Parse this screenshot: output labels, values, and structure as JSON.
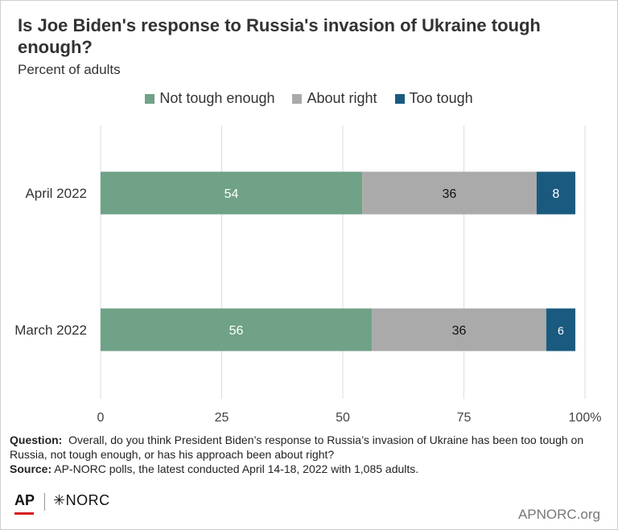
{
  "chart_data": {
    "type": "bar",
    "orientation": "horizontal",
    "stacked": true,
    "title": "Is Joe Biden's response to Russia's invasion of Ukraine tough enough?",
    "subtitle": "Percent of adults",
    "categories": [
      "April 2022",
      "March 2022"
    ],
    "series": [
      {
        "name": "Not tough enough",
        "values": [
          54,
          56
        ],
        "color": "#6fa287"
      },
      {
        "name": "About right",
        "values": [
          36,
          36
        ],
        "color": "#aaaaaa"
      },
      {
        "name": "Too tough",
        "values": [
          8,
          6
        ],
        "color": "#1a5a7f"
      }
    ],
    "xlim": [
      0,
      100
    ],
    "xticks": [
      "0",
      "25",
      "50",
      "75",
      "100%"
    ],
    "grid": true,
    "legend_position": "top"
  },
  "footer": {
    "question_label": "Question:",
    "question_text": "Overall, do you think President Biden’s response to Russia’s invasion of Ukraine has been too tough on Russia, not tough enough, or has his approach been about right?",
    "source_label": "Source:",
    "source_text": "AP-NORC polls, the latest conducted April 14-18, 2022 with 1,085 adults."
  },
  "branding": {
    "ap": "AP",
    "norc": "NORC",
    "norc_mark": "✳",
    "site": "APNORC.org"
  }
}
